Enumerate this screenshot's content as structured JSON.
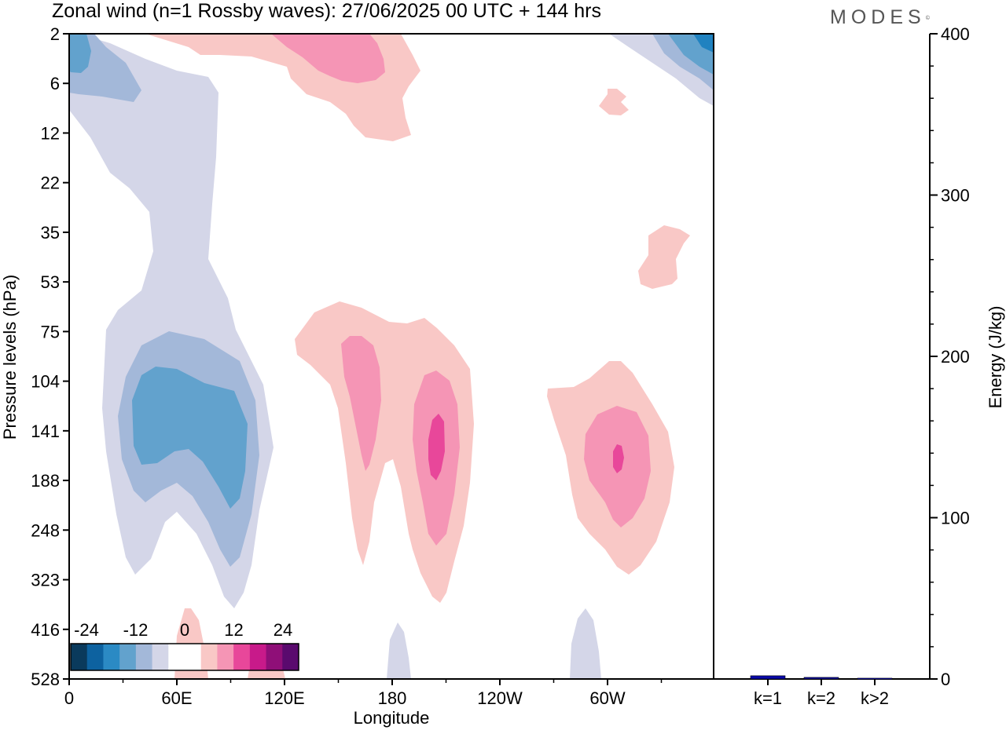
{
  "title": "Zonal wind (n=1 Rossby waves):  27/06/2025  00 UTC  + 144 hrs",
  "brand": "MODES",
  "brand_mark": "©",
  "colors": {
    "plus4": "#e8479a",
    "plus3": "#f595b5",
    "plus2": "#f9c8c6",
    "minus1": "#d4d6e8",
    "minus2": "#a3b8d9",
    "minus3": "#62a2cd",
    "minus4": "#2082c0",
    "energy_bar": "#0a0aa8"
  },
  "chart_data": [
    {
      "type": "heatmap",
      "title": "Zonal wind (n=1 Rossby waves):  27/06/2025  00 UTC  + 144 hrs",
      "xlabel": "Longitude",
      "ylabel": "Pressure levels (hPa)",
      "x_ticks": [
        "0",
        "60E",
        "120E",
        "180",
        "120W",
        "60W"
      ],
      "y_ticks": [
        "2",
        "6",
        "12",
        "22",
        "35",
        "53",
        "75",
        "104",
        "141",
        "188",
        "248",
        "323",
        "416",
        "528"
      ],
      "y_direction": "pressure decreasing upward",
      "colorbar": {
        "tick_labels": [
          "-24",
          "-12",
          "0",
          "12",
          "24"
        ],
        "colors": [
          "#0a3a5c",
          "#0d62a0",
          "#2b8ac4",
          "#62a2cd",
          "#a3b8d9",
          "#d4d6e8",
          "#ffffff",
          "#ffffff",
          "#f9c8c6",
          "#f595b5",
          "#e8479a",
          "#c81a8a",
          "#8f0f78",
          "#5a0a6e"
        ]
      },
      "features": [
        {
          "sign": "negative",
          "center_lon": "45E-60E",
          "level_hPa": 141,
          "peak": "about -12"
        },
        {
          "sign": "positive",
          "center_lon": "about 165W",
          "level_hPa": 141,
          "peak": "about 12"
        },
        {
          "sign": "positive",
          "center_lon": "about 60W",
          "level_hPa": 141,
          "peak": "about 12"
        },
        {
          "sign": "negative",
          "center_lon": "0-10E",
          "level_hPa": 2,
          "peak": "about -12"
        },
        {
          "sign": "positive",
          "center_lon": "about 135E",
          "level_hPa": 2,
          "peak": "about 6"
        }
      ]
    },
    {
      "type": "bar",
      "categories": [
        "k=1",
        "k=2",
        "k>2"
      ],
      "values": [
        2,
        1,
        0.5
      ],
      "ylabel": "Energy (J/kg)",
      "ylim": [
        0,
        400
      ],
      "y_ticks": [
        "0",
        "100",
        "200",
        "300",
        "400"
      ]
    }
  ]
}
